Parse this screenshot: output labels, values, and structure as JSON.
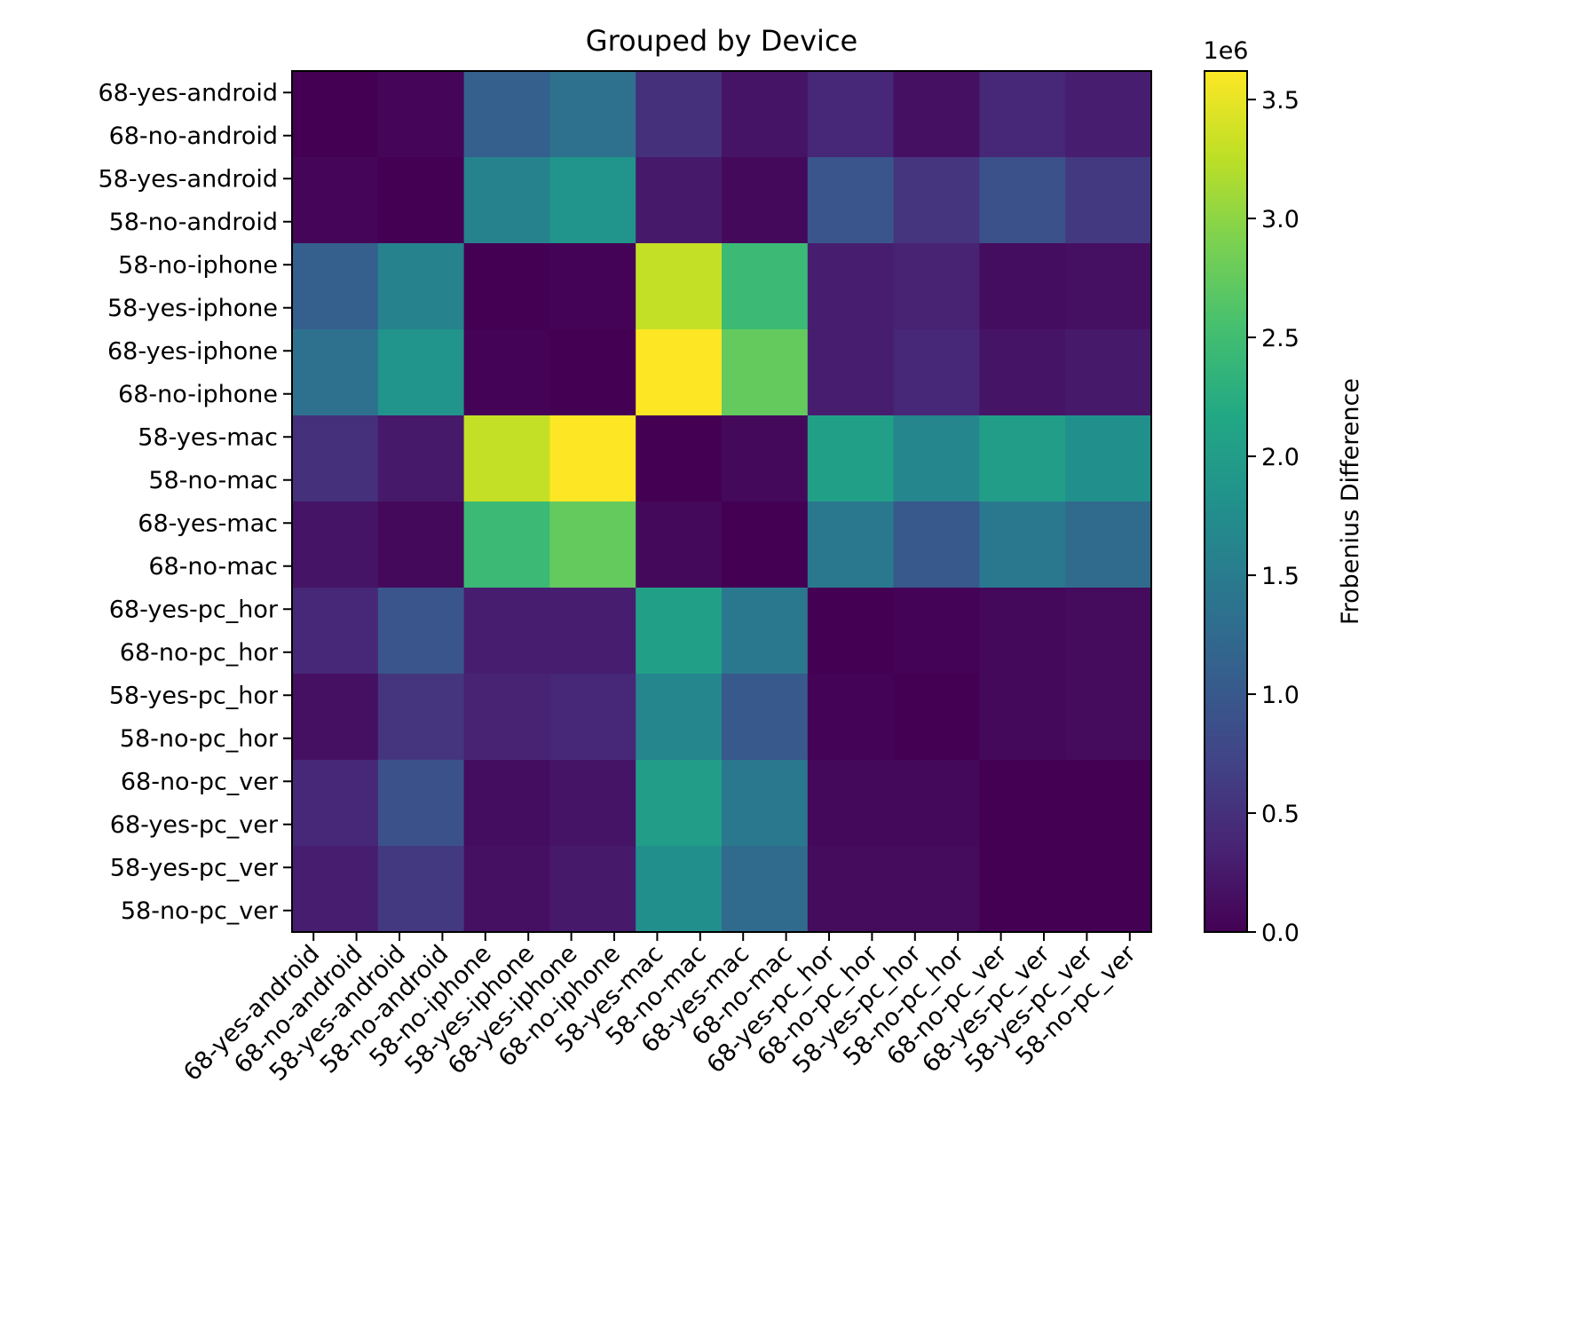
{
  "chart_data": {
    "type": "heatmap",
    "title": "Grouped by Device",
    "row_labels": [
      "68-yes-android",
      "68-no-android",
      "58-yes-android",
      "58-no-android",
      "58-no-iphone",
      "58-yes-iphone",
      "68-yes-iphone",
      "68-no-iphone",
      "58-yes-mac",
      "58-no-mac",
      "68-yes-mac",
      "68-no-mac",
      "68-yes-pc_hor",
      "68-no-pc_hor",
      "58-yes-pc_hor",
      "58-no-pc_hor",
      "68-no-pc_ver",
      "68-yes-pc_ver",
      "58-yes-pc_ver",
      "58-no-pc_ver"
    ],
    "col_labels": [
      "68-yes-android",
      "68-no-android",
      "58-yes-android",
      "58-no-android",
      "58-no-iphone",
      "58-yes-iphone",
      "68-yes-iphone",
      "68-no-iphone",
      "58-yes-mac",
      "58-no-mac",
      "68-yes-mac",
      "68-no-mac",
      "68-yes-pc_hor",
      "68-no-pc_hor",
      "58-yes-pc_hor",
      "58-no-pc_hor",
      "68-no-pc_ver",
      "68-yes-pc_ver",
      "58-yes-pc_ver",
      "58-no-pc_ver"
    ],
    "matrix_note": "10x10 matrix of values (units of 1e6), each cell spanning two tick labels",
    "values": [
      [
        0.0,
        0.05,
        1.1,
        1.35,
        0.5,
        0.2,
        0.4,
        0.15,
        0.4,
        0.3
      ],
      [
        0.05,
        0.0,
        1.6,
        1.85,
        0.25,
        0.08,
        0.95,
        0.55,
        0.9,
        0.6
      ],
      [
        1.1,
        1.6,
        0.0,
        0.02,
        3.3,
        2.45,
        0.3,
        0.35,
        0.12,
        0.15
      ],
      [
        1.35,
        1.85,
        0.02,
        0.0,
        3.62,
        2.75,
        0.3,
        0.4,
        0.2,
        0.25
      ],
      [
        0.5,
        0.25,
        3.3,
        3.62,
        0.0,
        0.08,
        2.05,
        1.65,
        2.0,
        1.8
      ],
      [
        0.2,
        0.08,
        2.45,
        2.75,
        0.08,
        0.0,
        1.45,
        1.0,
        1.45,
        1.25
      ],
      [
        0.4,
        0.95,
        0.3,
        0.3,
        2.05,
        1.45,
        0.0,
        0.02,
        0.08,
        0.1
      ],
      [
        0.15,
        0.55,
        0.35,
        0.4,
        1.65,
        1.0,
        0.02,
        0.0,
        0.08,
        0.1
      ],
      [
        0.4,
        0.9,
        0.12,
        0.2,
        2.0,
        1.45,
        0.08,
        0.08,
        0.0,
        0.0
      ],
      [
        0.3,
        0.6,
        0.15,
        0.25,
        1.8,
        1.25,
        0.1,
        0.1,
        0.0,
        0.0
      ]
    ],
    "colormap": "viridis",
    "vmin": 0,
    "vmax": 3.62,
    "colorbar": {
      "label": "Frobenius Difference",
      "offset_text": "1e6",
      "ticks": [
        0.0,
        0.5,
        1.0,
        1.5,
        2.0,
        2.5,
        3.0,
        3.5
      ],
      "tick_labels": [
        "0.0",
        "0.5",
        "1.0",
        "1.5",
        "2.0",
        "2.5",
        "3.0",
        "3.5"
      ]
    }
  }
}
